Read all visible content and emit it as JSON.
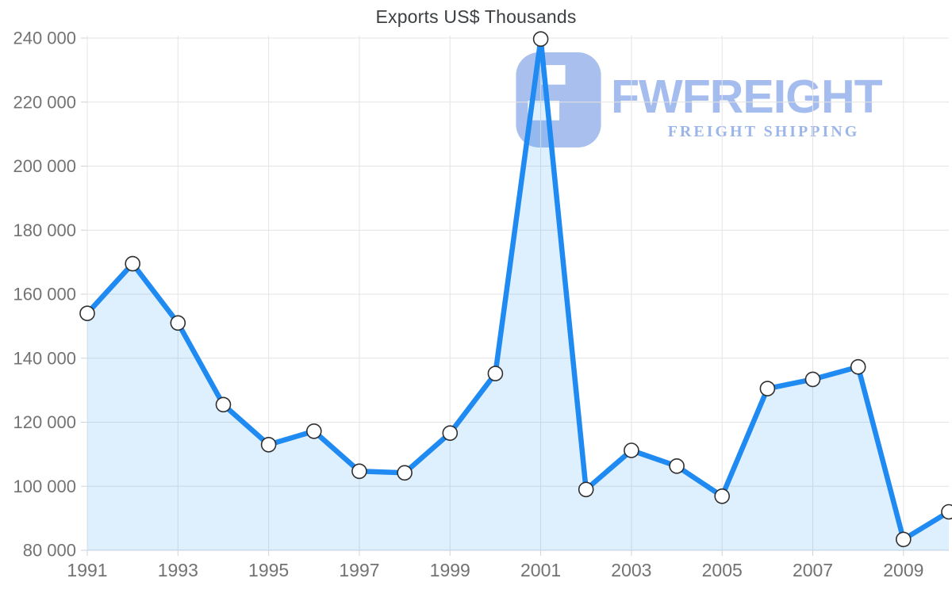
{
  "chart_data": {
    "type": "area",
    "title": "Exports US$ Thousands",
    "x": [
      1991,
      1992,
      1993,
      1994,
      1995,
      1996,
      1997,
      1998,
      1999,
      2000,
      2001,
      2002,
      2003,
      2004,
      2005,
      2006,
      2007,
      2008,
      2009,
      2010
    ],
    "values": [
      154000,
      169500,
      151000,
      125500,
      113000,
      117200,
      104700,
      104200,
      116600,
      135200,
      239700,
      99000,
      111200,
      106300,
      96900,
      130500,
      133400,
      137300,
      83400,
      92000
    ],
    "xlabel": "",
    "ylabel": "",
    "ylim": [
      80000,
      240000
    ],
    "ytick_step": 20000,
    "ytick_labels": [
      "80 000",
      "100 000",
      "120 000",
      "140 000",
      "160 000",
      "180 000",
      "200 000",
      "220 000",
      "240 000"
    ],
    "xtick_labels": [
      "1991",
      "1993",
      "1995",
      "1997",
      "1999",
      "2001",
      "2003",
      "2005",
      "2007",
      "2009"
    ],
    "grid": true,
    "legend_position": "none",
    "colors": {
      "line": "#1e8af2",
      "area_fill": "rgba(33, 150, 243, 0.15)",
      "marker_fill": "#ffffff",
      "marker_stroke": "#2f2f2f",
      "gridline": "#e4e4e4",
      "axis_line": "#c9d4dc",
      "tick": "#ccd4db",
      "label": "#737373",
      "title": "#3d4043"
    }
  },
  "watermark": {
    "brand": "FWFREIGHT",
    "tagline": "FREIGHT SHIPPING",
    "icon": "fwfreight-logo-icon",
    "color": "#a6bdee"
  }
}
